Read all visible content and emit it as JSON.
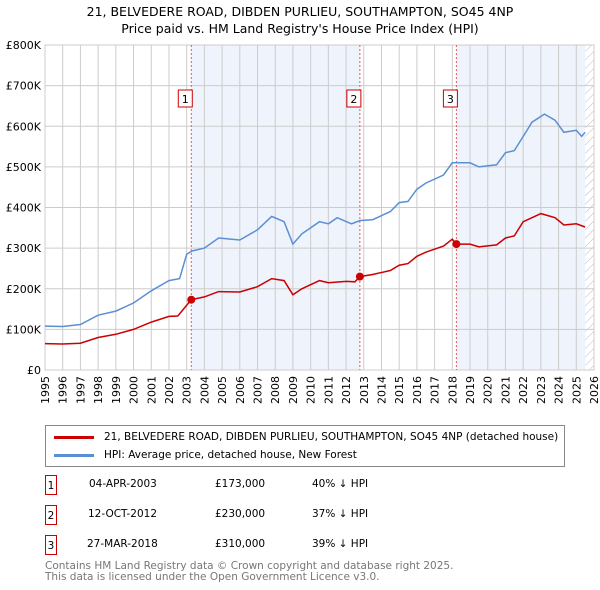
{
  "chart_data": {
    "type": "line",
    "title": "21, BELVEDERE ROAD, DIBDEN PURLIEU, SOUTHAMPTON, SO45 4NP",
    "subtitle": "Price paid vs. HM Land Registry's House Price Index (HPI)",
    "xlim": [
      1995,
      2026
    ],
    "ylim": [
      0,
      800000
    ],
    "y_ticks": [
      {
        "v": 0,
        "label": "£0"
      },
      {
        "v": 100000,
        "label": "£100K"
      },
      {
        "v": 200000,
        "label": "£200K"
      },
      {
        "v": 300000,
        "label": "£300K"
      },
      {
        "v": 400000,
        "label": "£400K"
      },
      {
        "v": 500000,
        "label": "£500K"
      },
      {
        "v": 600000,
        "label": "£600K"
      },
      {
        "v": 700000,
        "label": "£700K"
      },
      {
        "v": 800000,
        "label": "£800K"
      }
    ],
    "x_ticks": [
      "1995",
      "1996",
      "1997",
      "1998",
      "1999",
      "2000",
      "2001",
      "2002",
      "2003",
      "2004",
      "2005",
      "2006",
      "2007",
      "2008",
      "2009",
      "2010",
      "2011",
      "2012",
      "2013",
      "2014",
      "2015",
      "2016",
      "2017",
      "2018",
      "2019",
      "2020",
      "2021",
      "2022",
      "2023",
      "2024",
      "2025",
      "2026"
    ],
    "grid": true,
    "shaded_ranges": [
      [
        2003.26,
        2012.78
      ],
      [
        2018.23,
        2025.5
      ]
    ],
    "future_hatch_from": 2025.5,
    "series": [
      {
        "name": "21, BELVEDERE ROAD, DIBDEN PURLIEU, SOUTHAMPTON, SO45 4NP (detached house)",
        "color": "#cc0000",
        "x": [
          1995,
          1996,
          1997,
          1998,
          1999,
          2000,
          2001,
          2002,
          2002.5,
          2003.26,
          2004,
          2004.8,
          2006,
          2007,
          2007.8,
          2008.5,
          2009,
          2009.5,
          2010.5,
          2011,
          2012,
          2012.5,
          2012.78,
          2013.5,
          2014.5,
          2015,
          2015.5,
          2016,
          2016.5,
          2017.5,
          2018,
          2018.23,
          2019,
          2019.5,
          2020.5,
          2021,
          2021.5,
          2022,
          2022.5,
          2023,
          2023.8,
          2024.3,
          2025,
          2025.5
        ],
        "y": [
          65000,
          64000,
          66000,
          80000,
          88000,
          100000,
          118000,
          132000,
          133000,
          173000,
          180000,
          193000,
          192000,
          205000,
          225000,
          220000,
          185000,
          200000,
          220000,
          215000,
          218000,
          217000,
          230000,
          235000,
          245000,
          258000,
          262000,
          280000,
          290000,
          305000,
          322000,
          310000,
          310000,
          303000,
          308000,
          325000,
          330000,
          365000,
          375000,
          385000,
          375000,
          357000,
          360000,
          352000
        ]
      },
      {
        "name": "HPI: Average price, detached house, New Forest",
        "color": "#5b8fd4",
        "x": [
          1995,
          1996,
          1997,
          1998,
          1999,
          2000,
          2001,
          2002,
          2002.6,
          2003,
          2003.3,
          2004,
          2004.8,
          2006,
          2007,
          2007.8,
          2008.5,
          2009,
          2009.5,
          2010.5,
          2011,
          2011.5,
          2012.3,
          2012.8,
          2013.5,
          2014.5,
          2015,
          2015.5,
          2016,
          2016.5,
          2017.5,
          2018,
          2019,
          2019.5,
          2020.5,
          2021,
          2021.5,
          2022,
          2022.5,
          2023.2,
          2023.8,
          2024.3,
          2025,
          2025.3,
          2025.5
        ],
        "y": [
          108000,
          107000,
          112000,
          135000,
          145000,
          165000,
          195000,
          220000,
          225000,
          285000,
          293000,
          300000,
          325000,
          320000,
          345000,
          378000,
          365000,
          310000,
          335000,
          365000,
          360000,
          375000,
          360000,
          368000,
          370000,
          390000,
          412000,
          415000,
          445000,
          460000,
          480000,
          510000,
          510000,
          500000,
          505000,
          535000,
          540000,
          575000,
          610000,
          630000,
          615000,
          585000,
          590000,
          575000,
          585000
        ]
      }
    ],
    "sales": [
      {
        "n": "1",
        "x": 2003.26,
        "y": 173000,
        "date": "04-APR-2003",
        "price": "£173,000",
        "hpi": "40% ↓ HPI"
      },
      {
        "n": "2",
        "x": 2012.78,
        "y": 230000,
        "date": "12-OCT-2012",
        "price": "£230,000",
        "hpi": "37% ↓ HPI"
      },
      {
        "n": "3",
        "x": 2018.23,
        "y": 310000,
        "date": "27-MAR-2018",
        "price": "£310,000",
        "hpi": "39% ↓ HPI"
      }
    ]
  },
  "footer": {
    "line1": "Contains HM Land Registry data © Crown copyright and database right 2025.",
    "line2": "This data is licensed under the Open Government Licence v3.0."
  }
}
